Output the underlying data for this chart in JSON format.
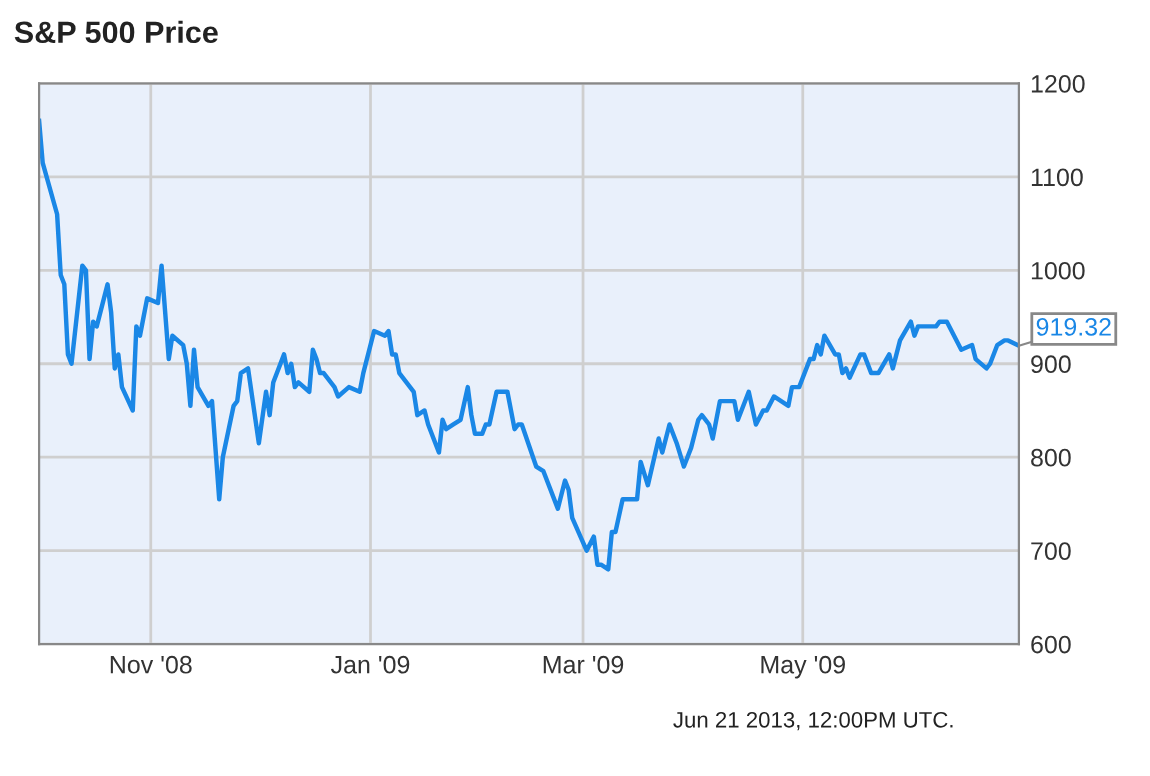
{
  "chart_data": {
    "type": "line",
    "title": "S&P 500 Price",
    "x": [
      "2008-10-01",
      "2008-10-02",
      "2008-10-06",
      "2008-10-07",
      "2008-10-08",
      "2008-10-09",
      "2008-10-10",
      "2008-10-13",
      "2008-10-14",
      "2008-10-15",
      "2008-10-16",
      "2008-10-17",
      "2008-10-20",
      "2008-10-21",
      "2008-10-22",
      "2008-10-23",
      "2008-10-24",
      "2008-10-27",
      "2008-10-28",
      "2008-10-29",
      "2008-10-30",
      "2008-10-31",
      "2008-11-03",
      "2008-11-04",
      "2008-11-06",
      "2008-11-07",
      "2008-11-10",
      "2008-11-11",
      "2008-11-12",
      "2008-11-13",
      "2008-11-14",
      "2008-11-17",
      "2008-11-18",
      "2008-11-20",
      "2008-11-21",
      "2008-11-24",
      "2008-11-25",
      "2008-11-26",
      "2008-11-28",
      "2008-12-01",
      "2008-12-03",
      "2008-12-04",
      "2008-12-05",
      "2008-12-08",
      "2008-12-09",
      "2008-12-10",
      "2008-12-11",
      "2008-12-12",
      "2008-12-15",
      "2008-12-16",
      "2008-12-17",
      "2008-12-18",
      "2008-12-19",
      "2008-12-22",
      "2008-12-23",
      "2008-12-26",
      "2008-12-29",
      "2008-12-30",
      "2009-01-02",
      "2009-01-05",
      "2009-01-06",
      "2009-01-07",
      "2009-01-08",
      "2009-01-09",
      "2009-01-13",
      "2009-01-14",
      "2009-01-16",
      "2009-01-17",
      "2009-01-20",
      "2009-01-21",
      "2009-01-22",
      "2009-01-24",
      "2009-01-26",
      "2009-01-28",
      "2009-01-29",
      "2009-01-30",
      "2009-02-01",
      "2009-02-02",
      "2009-02-03",
      "2009-02-05",
      "2009-02-08",
      "2009-02-10",
      "2009-02-11",
      "2009-02-12",
      "2009-02-16",
      "2009-02-18",
      "2009-02-22",
      "2009-02-24",
      "2009-02-25",
      "2009-02-26",
      "2009-03-02",
      "2009-03-04",
      "2009-03-05",
      "2009-03-06",
      "2009-03-08",
      "2009-03-09",
      "2009-03-10",
      "2009-03-12",
      "2009-03-14",
      "2009-03-16",
      "2009-03-17",
      "2009-03-19",
      "2009-03-22",
      "2009-03-23",
      "2009-03-25",
      "2009-03-27",
      "2009-03-29",
      "2009-03-31",
      "2009-04-02",
      "2009-04-03",
      "2009-04-05",
      "2009-04-06",
      "2009-04-08",
      "2009-04-12",
      "2009-04-13",
      "2009-04-16",
      "2009-04-18",
      "2009-04-20",
      "2009-04-21",
      "2009-04-23",
      "2009-04-27",
      "2009-04-28",
      "2009-04-30",
      "2009-05-01",
      "2009-05-03",
      "2009-05-04",
      "2009-05-05",
      "2009-05-06",
      "2009-05-07",
      "2009-05-10",
      "2009-05-11",
      "2009-05-12",
      "2009-05-13",
      "2009-05-14",
      "2009-05-17",
      "2009-05-18",
      "2009-05-20",
      "2009-05-22",
      "2009-05-25",
      "2009-05-26",
      "2009-05-28",
      "2009-05-31",
      "2009-06-01",
      "2009-06-02",
      "2009-06-05",
      "2009-06-07",
      "2009-06-08",
      "2009-06-10",
      "2009-06-12",
      "2009-06-14",
      "2009-06-17",
      "2009-06-18",
      "2009-06-21",
      "2009-06-22",
      "2009-06-24",
      "2009-06-26",
      "2009-06-27",
      "2009-06-30"
    ],
    "series": [
      {
        "color": "#1a87e6",
        "values": [
          1160,
          1115,
          1060,
          995,
          985,
          910,
          900,
          1005,
          1000,
          905,
          945,
          940,
          985,
          955,
          895,
          910,
          875,
          850,
          940,
          930,
          950,
          970,
          965,
          1005,
          905,
          930,
          920,
          900,
          855,
          915,
          875,
          855,
          860,
          755,
          800,
          855,
          860,
          890,
          895,
          815,
          870,
          845,
          880,
          910,
          890,
          900,
          875,
          880,
          870,
          915,
          905,
          890,
          890,
          875,
          865,
          875,
          870,
          890,
          935,
          930,
          935,
          910,
          910,
          890,
          870,
          845,
          850,
          835,
          805,
          840,
          830,
          835,
          840,
          875,
          845,
          825,
          825,
          835,
          835,
          870,
          870,
          830,
          835,
          835,
          790,
          785,
          745,
          775,
          765,
          735,
          700,
          715,
          685,
          685,
          680,
          720,
          720,
          755,
          755,
          755,
          795,
          770,
          820,
          805,
          835,
          815,
          790,
          810,
          840,
          845,
          835,
          820,
          860,
          860,
          840,
          870,
          835,
          850,
          850,
          865,
          855,
          875,
          875,
          885,
          905,
          905,
          920,
          910,
          930,
          910,
          910,
          890,
          895,
          885,
          910,
          910,
          890,
          890,
          910,
          895,
          925,
          945,
          930,
          940,
          940,
          940,
          945,
          945,
          930,
          915,
          920,
          905,
          895,
          900,
          920,
          925,
          925,
          919.32
        ]
      }
    ],
    "xlim": [
      "2008-10-01",
      "2009-06-30"
    ],
    "xticks": [
      {
        "value": "2008-11-01",
        "label": "Nov '08"
      },
      {
        "value": "2009-01-01",
        "label": "Jan '09"
      },
      {
        "value": "2009-03-01",
        "label": "Mar '09"
      },
      {
        "value": "2009-05-01",
        "label": "May '09"
      }
    ],
    "ylim": [
      600,
      1200
    ],
    "yticks": [
      600,
      700,
      800,
      900,
      1000,
      1100,
      1200
    ],
    "grid": true,
    "marker": "none",
    "line_style": "solid",
    "annotations": [
      {
        "text": "919.32",
        "x": "2009-06-30",
        "y": 919.32
      },
      "Jun 21 2013, 12:00PM UTC."
    ]
  }
}
